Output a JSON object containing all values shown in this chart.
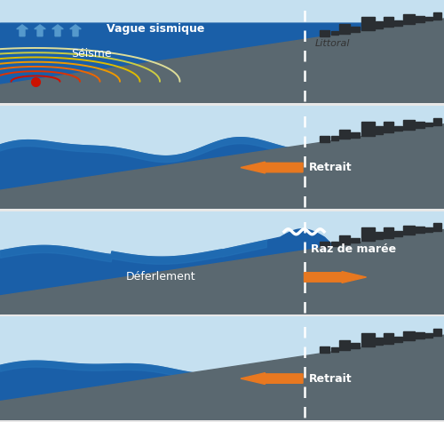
{
  "sky_color": "#c5e0f0",
  "deep_water_color": "#1a5fa8",
  "mid_water_color": "#2472b8",
  "ground_color": "#5a6870",
  "building_color": "#2a2e32",
  "arrow_color": "#e87820",
  "dashed_color": "#cccccc",
  "seismic_colors": [
    "#cc1100",
    "#dd3300",
    "#ee6600",
    "#ee9900",
    "#ddbb00",
    "#cccc44",
    "#dddd99"
  ],
  "seismic_radii": [
    0.055,
    0.1,
    0.145,
    0.19,
    0.235,
    0.28,
    0.325
  ],
  "blue_arrow_color": "#5599cc",
  "panel_bg": "#ffffff",
  "panels": [
    {
      "id": 1,
      "label1": "Vague sismique",
      "label2": "Séisme",
      "label3": "Littoral"
    },
    {
      "id": 2,
      "label1": "Retrait",
      "arrow_dir": -1
    },
    {
      "id": 3,
      "label1": "Raz de marée",
      "label2": "Déferlement",
      "arrow_dir": 1
    },
    {
      "id": 4,
      "label1": "Retrait",
      "arrow_dir": -1
    }
  ]
}
